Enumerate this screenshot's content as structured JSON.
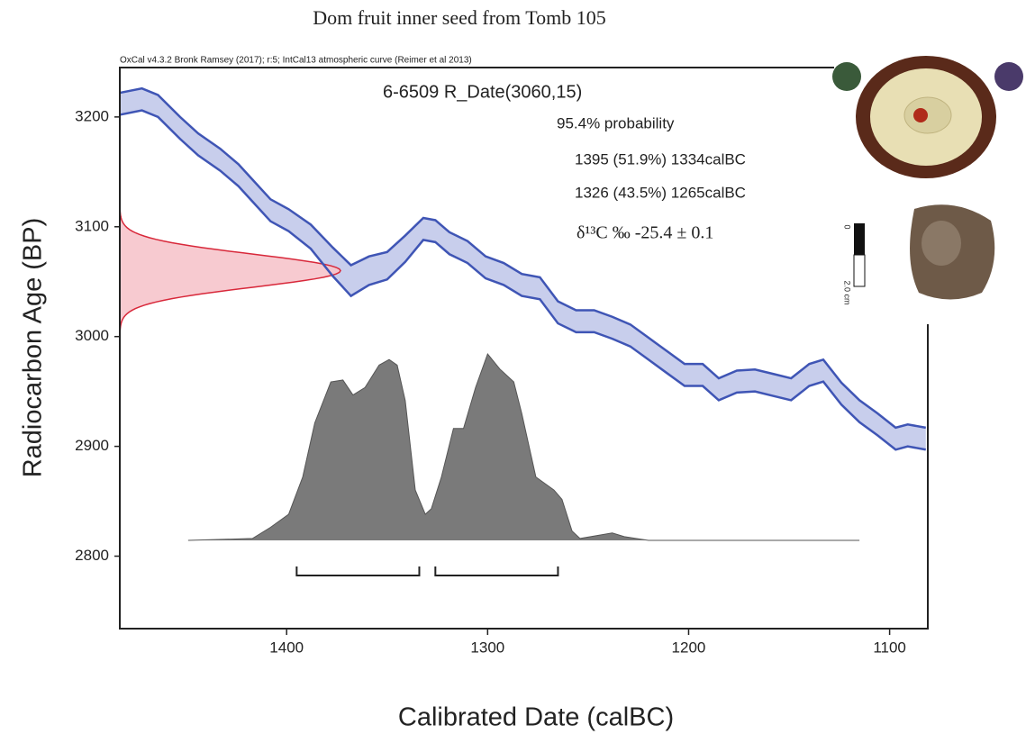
{
  "chart_data": {
    "type": "calibration",
    "title": "Dom fruit inner seed from Tomb 105",
    "header": "OxCal v4.3.2 Bronk Ramsey (2017); r:5; IntCal13 atmospheric curve (Reimer et al 2013)",
    "xlabel": "Calibrated Date (calBC)",
    "ylabel": "Radiocarbon Age (BP)",
    "xlim": [
      1483,
      1081
    ],
    "ylim": [
      2734,
      3245
    ],
    "xticks": [
      1400,
      1300,
      1200,
      1100
    ],
    "yticks": [
      2800,
      2900,
      3000,
      3100,
      3200
    ],
    "sample_label": "6-6509 R_Date(3060,15)",
    "r_date": {
      "mean": 3060,
      "sigma": 15,
      "color": "#d8283a",
      "fill": "#f6c4cb"
    },
    "probability_label": "95.4% probability",
    "ranges": [
      {
        "label": "1395 (51.9%) 1334calBC",
        "from": 1395,
        "to": 1334
      },
      {
        "label": "1326 (43.5%) 1265calBC",
        "from": 1326,
        "to": 1265
      }
    ],
    "isotope_label": "δ¹³C ‰ -25.4 ± 0.1",
    "scale_bar_labels": [
      "0",
      "2.0 cm"
    ],
    "curve": {
      "color": "#3f55b5",
      "fill": "#c8ceec",
      "x": [
        1483,
        1472,
        1464,
        1453,
        1444,
        1433,
        1424,
        1417,
        1408,
        1399,
        1388,
        1377,
        1368,
        1359,
        1350,
        1341,
        1332,
        1326,
        1319,
        1310,
        1301,
        1292,
        1283,
        1274,
        1265,
        1256,
        1247,
        1238,
        1229,
        1220,
        1211,
        1202,
        1193,
        1185,
        1176,
        1167,
        1158,
        1149,
        1140,
        1133,
        1124,
        1115,
        1106,
        1097,
        1091,
        1082
      ],
      "upper": [
        3222,
        3226,
        3220,
        3200,
        3185,
        3171,
        3157,
        3143,
        3125,
        3116,
        3102,
        3081,
        3065,
        3073,
        3077,
        3092,
        3108,
        3106,
        3095,
        3087,
        3073,
        3067,
        3057,
        3054,
        3032,
        3024,
        3024,
        3018,
        3011,
        2999,
        2987,
        2975,
        2975,
        2962,
        2969,
        2970,
        2966,
        2962,
        2975,
        2979,
        2958,
        2942,
        2930,
        2917,
        2920,
        2917
      ],
      "lower": [
        3202,
        3206,
        3200,
        3180,
        3165,
        3151,
        3137,
        3123,
        3105,
        3096,
        3080,
        3055,
        3037,
        3047,
        3052,
        3068,
        3088,
        3086,
        3075,
        3067,
        3053,
        3047,
        3037,
        3034,
        3012,
        3004,
        3004,
        2998,
        2991,
        2979,
        2967,
        2955,
        2955,
        2942,
        2949,
        2950,
        2946,
        2942,
        2955,
        2959,
        2938,
        2922,
        2910,
        2897,
        2900,
        2897
      ]
    },
    "posterior": {
      "color": "#7a7a7a",
      "x": [
        1449,
        1417,
        1408,
        1399,
        1392,
        1386,
        1378,
        1372,
        1367,
        1361,
        1354,
        1349,
        1345,
        1341,
        1336,
        1331,
        1328,
        1323,
        1317,
        1312,
        1306,
        1300,
        1294,
        1287,
        1283,
        1276,
        1267,
        1263,
        1258,
        1254,
        1238,
        1232,
        1220,
        1115
      ],
      "density": [
        0,
        1,
        7,
        14,
        34,
        63,
        85,
        86,
        78,
        82,
        94,
        97,
        94,
        75,
        27,
        14,
        17,
        34,
        60,
        60,
        82,
        100,
        92,
        85,
        68,
        34,
        27,
        22,
        5,
        1,
        4,
        2,
        0,
        0
      ]
    }
  }
}
